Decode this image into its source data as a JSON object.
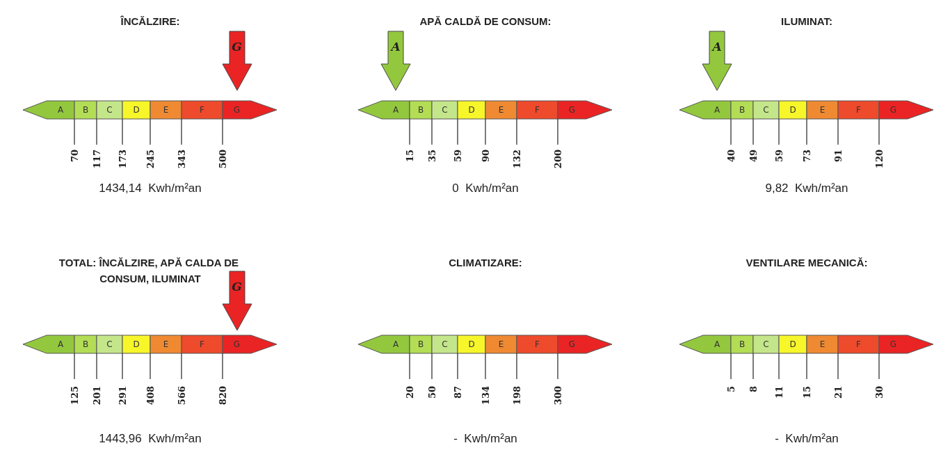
{
  "chart_data": [
    {
      "type": "other",
      "title": "ÎNCĂLZIRE:",
      "categories": [
        "A",
        "B",
        "C",
        "D",
        "E",
        "F",
        "G"
      ],
      "colors": [
        "#93c83e",
        "#b3dd55",
        "#c4e68a",
        "#f6f62a",
        "#ef8a32",
        "#ee4a2c",
        "#ea2424"
      ],
      "values": [
        70,
        117,
        173,
        245,
        343,
        500,
        null
      ],
      "data_labels": true,
      "needle": "G",
      "annotations": [
        "1434,14  Kwh/m²an"
      ]
    },
    {
      "type": "other",
      "title": "APĂ CALDĂ DE CONSUM:",
      "categories": [
        "A",
        "B",
        "C",
        "D",
        "E",
        "F",
        "G"
      ],
      "colors": [
        "#93c83e",
        "#b3dd55",
        "#c4e68a",
        "#f6f62a",
        "#ef8a32",
        "#ee4a2c",
        "#ea2424"
      ],
      "values": [
        15,
        35,
        59,
        90,
        132,
        200,
        null
      ],
      "data_labels": true,
      "needle": "A",
      "annotations": [
        "0  Kwh/m²an"
      ]
    },
    {
      "type": "other",
      "title": "ILUMINAT:",
      "categories": [
        "A",
        "B",
        "C",
        "D",
        "E",
        "F",
        "G"
      ],
      "colors": [
        "#93c83e",
        "#b3dd55",
        "#c4e68a",
        "#f6f62a",
        "#ef8a32",
        "#ee4a2c",
        "#ea2424"
      ],
      "values": [
        40,
        49,
        59,
        73,
        91,
        120,
        null
      ],
      "data_labels": true,
      "needle": "A",
      "annotations": [
        "9,82  Kwh/m²an"
      ]
    },
    {
      "type": "other",
      "title": "TOTAL: ÎNCĂLZIRE, APĂ CALDA DE CONSUM, ILUMINAT",
      "categories": [
        "A",
        "B",
        "C",
        "D",
        "E",
        "F",
        "G"
      ],
      "colors": [
        "#93c83e",
        "#b3dd55",
        "#c4e68a",
        "#f6f62a",
        "#ef8a32",
        "#ee4a2c",
        "#ea2424"
      ],
      "values": [
        125,
        201,
        291,
        408,
        566,
        820,
        null
      ],
      "data_labels": true,
      "needle": "G",
      "annotations": [
        "1443,96  Kwh/m²an"
      ]
    },
    {
      "type": "other",
      "title": "CLIMATIZARE:",
      "categories": [
        "A",
        "B",
        "C",
        "D",
        "E",
        "F",
        "G"
      ],
      "colors": [
        "#93c83e",
        "#b3dd55",
        "#c4e68a",
        "#f6f62a",
        "#ef8a32",
        "#ee4a2c",
        "#ea2424"
      ],
      "values": [
        20,
        50,
        87,
        134,
        198,
        300,
        null
      ],
      "data_labels": true,
      "annotations": [
        "-  Kwh/m²an"
      ]
    },
    {
      "type": "other",
      "title": "VENTILARE MECANICĂ:",
      "categories": [
        "A",
        "B",
        "C",
        "D",
        "E",
        "F",
        "G"
      ],
      "colors": [
        "#93c83e",
        "#b3dd55",
        "#c4e68a",
        "#f6f62a",
        "#ef8a32",
        "#ee4a2c",
        "#ea2424"
      ],
      "values": [
        5,
        8,
        11,
        15,
        21,
        30,
        null
      ],
      "data_labels": true,
      "annotations": [
        "-  Kwh/m²an"
      ]
    }
  ]
}
